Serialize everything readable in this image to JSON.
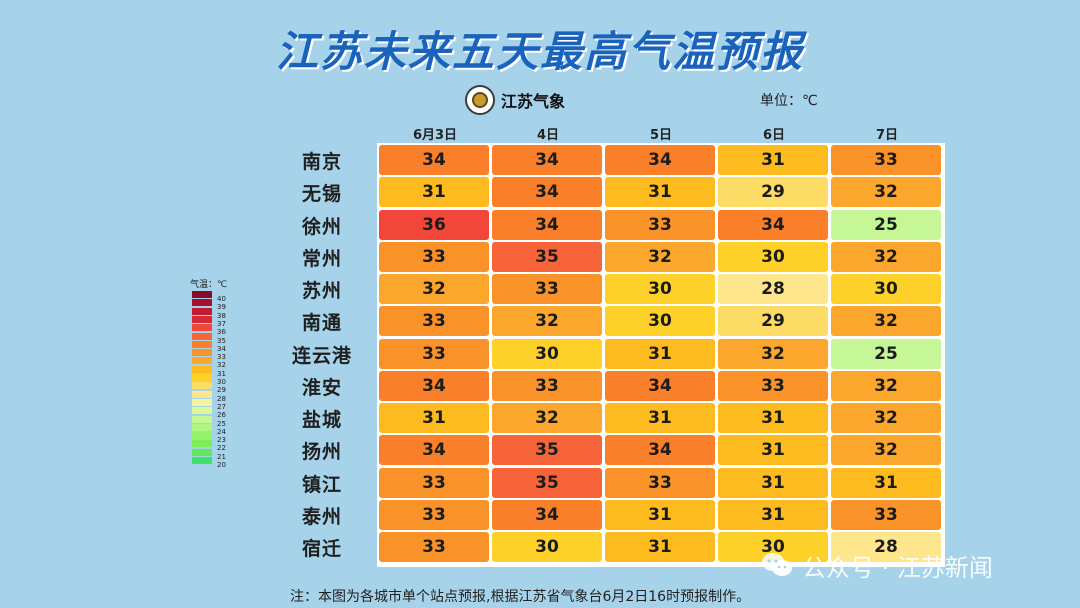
{
  "title": "江苏未来五天最高气温预报",
  "brand": {
    "name": "江苏气象",
    "logo_icon": "jiangsu-meteorology-logo"
  },
  "unit_label": "单位：℃",
  "chart_data": {
    "type": "heatmap",
    "title": "江苏未来五天最高气温预报",
    "unit": "℃",
    "columns": [
      "6月3日",
      "4日",
      "5日",
      "6日",
      "7日"
    ],
    "rows": [
      "南京",
      "无锡",
      "徐州",
      "常州",
      "苏州",
      "南通",
      "连云港",
      "淮安",
      "盐城",
      "扬州",
      "镇江",
      "泰州",
      "宿迁"
    ],
    "values": [
      [
        34,
        34,
        34,
        31,
        33
      ],
      [
        31,
        34,
        31,
        29,
        32
      ],
      [
        36,
        34,
        33,
        34,
        25
      ],
      [
        33,
        35,
        32,
        30,
        32
      ],
      [
        32,
        33,
        30,
        28,
        30
      ],
      [
        33,
        32,
        30,
        29,
        32
      ],
      [
        33,
        30,
        31,
        32,
        25
      ],
      [
        34,
        33,
        34,
        33,
        32
      ],
      [
        31,
        32,
        31,
        31,
        32
      ],
      [
        34,
        35,
        34,
        31,
        32
      ],
      [
        33,
        35,
        33,
        31,
        31
      ],
      [
        33,
        34,
        31,
        31,
        33
      ],
      [
        33,
        30,
        31,
        30,
        28
      ]
    ]
  },
  "legend": {
    "title": "气温：℃",
    "stops": [
      {
        "value": "40",
        "color": "#8b0a24"
      },
      {
        "value": "39",
        "color": "#a80f2c"
      },
      {
        "value": "38",
        "color": "#c21a33"
      },
      {
        "value": "37",
        "color": "#d62a36"
      },
      {
        "value": "36",
        "color": "#f0473a"
      },
      {
        "value": "35",
        "color": "#f7643a"
      },
      {
        "value": "34",
        "color": "#f97f2a"
      },
      {
        "value": "33",
        "color": "#fa922a"
      },
      {
        "value": "32",
        "color": "#fba62c"
      },
      {
        "value": "31",
        "color": "#fdbb1f"
      },
      {
        "value": "30",
        "color": "#fed02a"
      },
      {
        "value": "29",
        "color": "#fddc66"
      },
      {
        "value": "28",
        "color": "#fde68c"
      },
      {
        "value": "27",
        "color": "#f4f59a"
      },
      {
        "value": "26",
        "color": "#dff89a"
      },
      {
        "value": "25",
        "color": "#c5f796"
      },
      {
        "value": "24",
        "color": "#aef582"
      },
      {
        "value": "23",
        "color": "#94f26c"
      },
      {
        "value": "22",
        "color": "#7cee5a"
      },
      {
        "value": "21",
        "color": "#5fea56"
      },
      {
        "value": "20",
        "color": "#3de26a"
      }
    ]
  },
  "note": "注：本图为各城市单个站点预报,根据江苏省气象台6月2日16时预报制作。",
  "watermark": {
    "text": "公众号 · 江苏新闻",
    "icon": "wechat-icon"
  }
}
